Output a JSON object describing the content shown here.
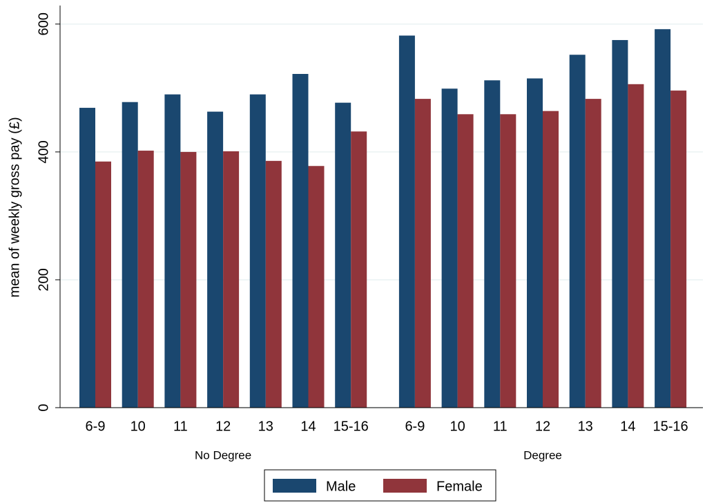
{
  "chart_data": {
    "type": "bar",
    "ylabel": "mean of weekly gross pay (£)",
    "groups": [
      {
        "name": "No Degree",
        "categories": [
          "6-9",
          "10",
          "11",
          "12",
          "13",
          "14",
          "15-16"
        ]
      },
      {
        "name": "Degree",
        "categories": [
          "6-9",
          "10",
          "11",
          "12",
          "13",
          "14",
          "15-16"
        ]
      }
    ],
    "series": [
      {
        "name": "Male",
        "color": "#1a476f",
        "values": [
          469,
          478,
          490,
          463,
          490,
          522,
          477,
          582,
          499,
          512,
          515,
          552,
          575,
          592
        ]
      },
      {
        "name": "Female",
        "color": "#90353b",
        "values": [
          385,
          402,
          400,
          401,
          386,
          378,
          432,
          483,
          459,
          459,
          464,
          483,
          506,
          496
        ]
      }
    ],
    "ylim": [
      0,
      629
    ],
    "yticks": [
      0,
      200,
      400,
      600
    ],
    "grid": true,
    "legend": "bottom"
  }
}
